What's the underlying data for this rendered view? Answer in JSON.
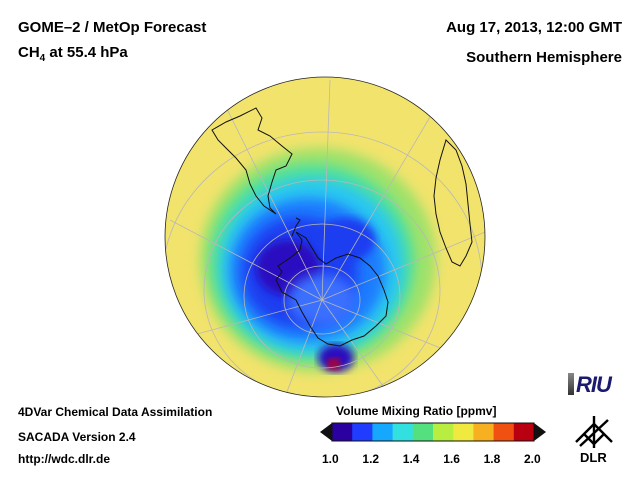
{
  "header": {
    "title_line1": "GOME–2 / MetOp Forecast",
    "species": "CH",
    "species_sub": "4",
    "pressure_text": " at 55.4 hPa",
    "datetime": "Aug 17, 2013, 12:00 GMT",
    "region": "Southern Hemisphere"
  },
  "footer": {
    "line1": "4DVar Chemical Data Assimilation",
    "line2": "SACADA Version 2.4",
    "line3": "http://wdc.dlr.de"
  },
  "colorbar": {
    "title": "Volume Mixing Ratio [ppmv]",
    "ticks": [
      "1.0",
      "1.2",
      "1.4",
      "1.6",
      "1.8",
      "2.0"
    ],
    "min": 1.0,
    "max": 2.0,
    "colors": [
      "#2a00a0",
      "#1f3cff",
      "#16a8ff",
      "#33e0e0",
      "#55e080",
      "#b8ee40",
      "#f0ea40",
      "#f7b020",
      "#f05010",
      "#b80010"
    ]
  },
  "logos": {
    "riu": "RIU",
    "dlr": "DLR",
    "riu_icon": "riu-logo-icon",
    "dlr_icon": "dlr-logo-icon"
  },
  "map": {
    "projection": "orthographic",
    "center": "south-pole",
    "background_color": "#f2e26a"
  }
}
